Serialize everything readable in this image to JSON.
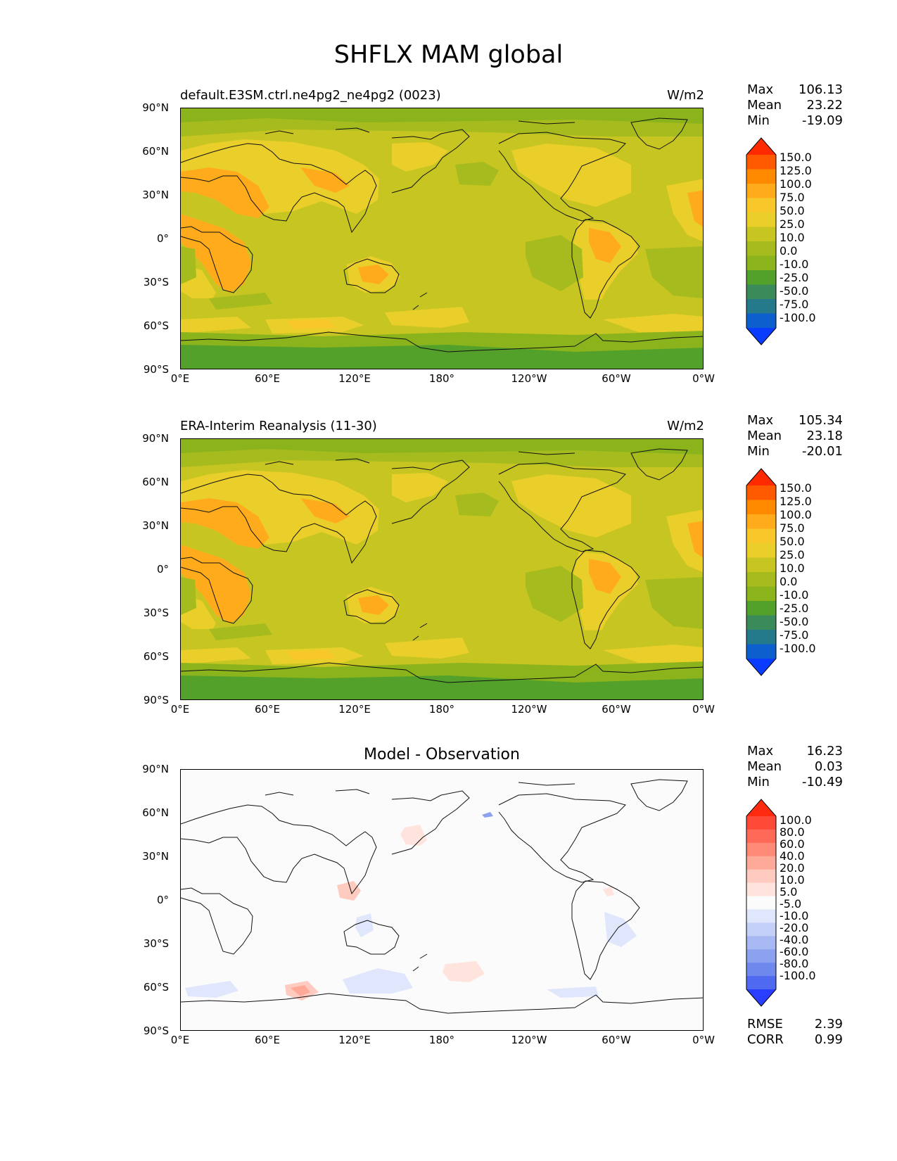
{
  "figure": {
    "title": "SHFLX MAM global"
  },
  "axes": {
    "y_ticks": [
      "90°N",
      "60°N",
      "30°N",
      "0°",
      "30°S",
      "60°S",
      "90°S"
    ],
    "x_ticks": [
      "0°E",
      "60°E",
      "120°E",
      "180°",
      "120°W",
      "60°W",
      "0°W"
    ]
  },
  "panels": [
    {
      "title_left": "default.E3SM.ctrl.ne4pg2_ne4pg2 (0023)",
      "title_right": "W/m2",
      "stats": [
        {
          "label": "Max",
          "value": "106.13"
        },
        {
          "label": "Mean",
          "value": "23.22"
        },
        {
          "label": "Min",
          "value": "-19.09"
        }
      ],
      "colorbar_labels": [
        "150.0",
        "125.0",
        "100.0",
        "75.0",
        "50.0",
        "25.0",
        "10.0",
        "0.0",
        "-10.0",
        "-25.0",
        "-50.0",
        "-75.0",
        "-100.0"
      ]
    },
    {
      "title_left": "ERA-Interim Reanalysis (11-30)",
      "title_right": "W/m2",
      "stats": [
        {
          "label": "Max",
          "value": "105.34"
        },
        {
          "label": "Mean",
          "value": "23.18"
        },
        {
          "label": "Min",
          "value": "-20.01"
        }
      ],
      "colorbar_labels": [
        "150.0",
        "125.0",
        "100.0",
        "75.0",
        "50.0",
        "25.0",
        "10.0",
        "0.0",
        "-10.0",
        "-25.0",
        "-50.0",
        "-75.0",
        "-100.0"
      ]
    },
    {
      "title_center": "Model - Observation",
      "stats": [
        {
          "label": "Max",
          "value": "16.23"
        },
        {
          "label": "Mean",
          "value": "0.03"
        },
        {
          "label": "Min",
          "value": "-10.49"
        }
      ],
      "colorbar_labels": [
        "100.0",
        "80.0",
        "60.0",
        "40.0",
        "20.0",
        "10.0",
        "5.0",
        "-5.0",
        "-10.0",
        "-20.0",
        "-40.0",
        "-60.0",
        "-80.0",
        "-100.0"
      ],
      "metrics": [
        {
          "label": "RMSE",
          "value": "2.39"
        },
        {
          "label": "CORR",
          "value": "0.99"
        }
      ]
    }
  ],
  "colors": {
    "field_colormap": [
      "#ff2a00",
      "#ff5a00",
      "#ff8a00",
      "#ffab1c",
      "#f8c82a",
      "#eacf2a",
      "#c6c522",
      "#a6bb1e",
      "#8bb31c",
      "#53a12a",
      "#3a8a5a",
      "#247a8a",
      "#0c5fcc",
      "#0a3cff"
    ],
    "diff_colormap": [
      "#ff2a10",
      "#ff4a38",
      "#ff6a58",
      "#ff8a78",
      "#ffaa98",
      "#ffcbc0",
      "#ffe4de",
      "#fbfbfb",
      "#e0e6fb",
      "#c4d0f8",
      "#a8b8f3",
      "#8ca2ee",
      "#6f88ee",
      "#4f6af0",
      "#2a3eff"
    ]
  }
}
